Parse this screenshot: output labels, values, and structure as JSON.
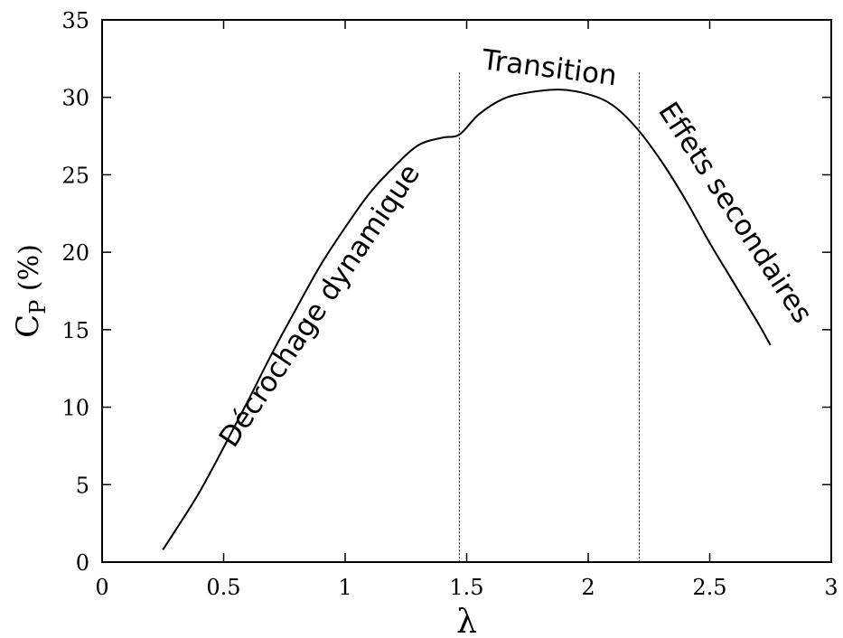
{
  "chart_data": {
    "type": "line",
    "xlabel": "λ",
    "ylabel": {
      "main": "C",
      "sub": "P",
      "rest": " (%)"
    },
    "xlim": [
      0,
      3
    ],
    "ylim": [
      0,
      35
    ],
    "xticks": [
      "0",
      "0.5",
      "1",
      "1.5",
      "2",
      "2.5",
      "3"
    ],
    "yticks": [
      "0",
      "5",
      "10",
      "15",
      "20",
      "25",
      "30",
      "35"
    ],
    "grid": false,
    "series": [
      {
        "x": [
          0.25,
          0.3,
          0.4,
          0.5,
          0.6,
          0.7,
          0.8,
          0.9,
          1.0,
          1.1,
          1.2,
          1.3,
          1.4,
          1.47,
          1.55,
          1.65,
          1.75,
          1.88,
          2.0,
          2.1,
          2.2,
          2.3,
          2.4,
          2.5,
          2.6,
          2.7,
          2.75
        ],
        "y": [
          0.8,
          2.0,
          4.5,
          7.4,
          10.4,
          13.5,
          16.4,
          19.2,
          21.6,
          23.8,
          25.5,
          26.9,
          27.4,
          27.6,
          28.9,
          29.9,
          30.3,
          30.5,
          30.2,
          29.5,
          28.0,
          25.9,
          23.4,
          20.6,
          18.0,
          15.4,
          14.0
        ]
      }
    ],
    "vlines": [
      1.47,
      2.21
    ],
    "annotations": [
      {
        "text": "Décrochage dynamique",
        "x": 0.9,
        "y": 16.5
      },
      {
        "text": "Transition",
        "x": 1.84,
        "y": 31.8
      },
      {
        "text": "Effets secondaires",
        "x": 2.6,
        "y": 22.5
      }
    ]
  }
}
